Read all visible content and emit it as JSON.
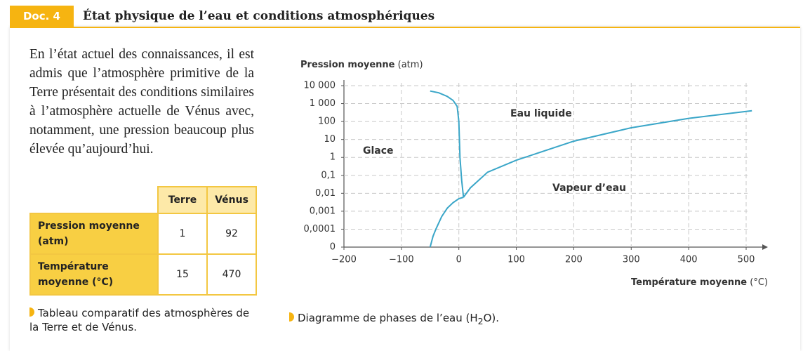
{
  "header": {
    "label": "Doc. 4",
    "title": "État physique de l’eau et conditions atmosphériques"
  },
  "paragraph": "En l’état actuel des connaissances, il est admis que l’atmosphère primitive de la Terre présentait des conditions similaires à l’atmosphère actuelle de Vénus avec, notamment, une pression beaucoup plus élevée qu’aujourd’hui.",
  "table": {
    "columns": [
      "Terre",
      "Vénus"
    ],
    "rows": [
      [
        "Pression moyenne (atm)",
        1,
        92
      ],
      [
        "Température moyenne (°C)",
        15,
        470
      ]
    ],
    "caption": "Tableau comparatif des atmosphères de la Terre et de Vénus."
  },
  "chart_data": {
    "type": "line",
    "ylabel": "Pression moyenne",
    "ylabel_unit": "(atm)",
    "xlabel": "Température moyenne",
    "xlabel_unit": "(°C)",
    "yscale": "log",
    "grid": true,
    "xlim": [
      -200,
      533
    ],
    "ylim": [
      1e-05,
      10000
    ],
    "xticks": [
      {
        "value": -200,
        "label": "−200"
      },
      {
        "value": -100,
        "label": "−100"
      },
      0,
      100,
      200,
      300,
      400,
      500
    ],
    "yticks": [
      {
        "value": 10000,
        "label": "10 000"
      },
      {
        "value": 1000,
        "label": "1 000"
      },
      100,
      10,
      1,
      {
        "value": 0.1,
        "label": "0,1"
      },
      {
        "value": 0.01,
        "label": "0,01"
      },
      {
        "value": 0.001,
        "label": "0,001"
      },
      {
        "value": 0.0001,
        "label": "0,0001"
      },
      {
        "value": 1e-05,
        "label": "0"
      }
    ],
    "series": [
      {
        "color": "#3aa6c8",
        "x": [
          -50,
          -35,
          -20,
          -10,
          -3,
          0,
          2,
          5,
          8
        ],
        "values": [
          5000,
          4000,
          2500,
          1500,
          700,
          100,
          1,
          0.05,
          0.006
        ]
      },
      {
        "color": "#3aa6c8",
        "x": [
          8,
          20,
          50,
          100,
          200,
          300,
          400,
          510
        ],
        "values": [
          0.006,
          0.02,
          0.15,
          0.7,
          8,
          45,
          150,
          400
        ]
      },
      {
        "color": "#3aa6c8",
        "x": [
          -50,
          -45,
          -40,
          -30,
          -20,
          -10,
          0,
          8
        ],
        "values": [
          1e-05,
          4e-05,
          0.0001,
          0.0005,
          0.0015,
          0.003,
          0.005,
          0.006
        ]
      }
    ],
    "annotations": [
      "Glace",
      "Eau liquide",
      "Vapeur d’eau"
    ],
    "caption": {
      "before": "Diagramme de phases de l’eau (H",
      "sub": "2",
      "after": "O)."
    }
  }
}
